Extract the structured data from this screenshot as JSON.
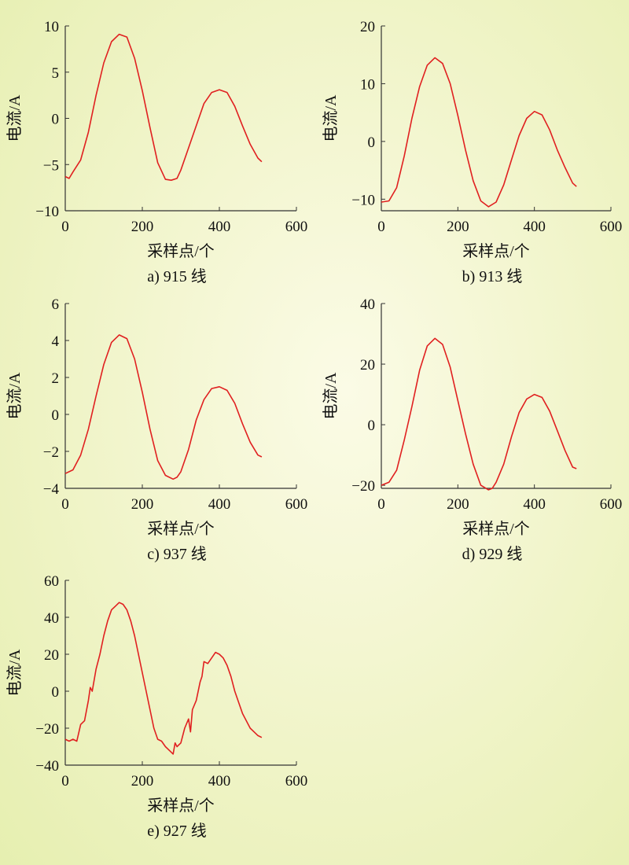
{
  "chart_data": [
    {
      "type": "line",
      "caption": "a) 915 线",
      "xlabel": "采样点/个",
      "ylabel": "电流/A",
      "xlim": [
        0,
        600
      ],
      "ylim": [
        -10,
        10
      ],
      "xticks": [
        0,
        200,
        400,
        600
      ],
      "yticks": [
        -10,
        -5,
        0,
        5,
        10
      ],
      "ytick_labels": [
        "−10",
        "−5",
        "0",
        "5",
        "10"
      ],
      "grid": false,
      "line_color": "#e02020",
      "series": [
        {
          "x": [
            0,
            10,
            20,
            40,
            60,
            80,
            100,
            120,
            140,
            160,
            180,
            200,
            220,
            240,
            260,
            275,
            290,
            300,
            320,
            340,
            360,
            380,
            400,
            420,
            440,
            460,
            480,
            500,
            510
          ],
          "values": [
            -6.3,
            -6.5,
            -5.8,
            -4.5,
            -1.5,
            2.5,
            6.0,
            8.3,
            9.1,
            8.8,
            6.5,
            3.0,
            -1.0,
            -4.8,
            -6.6,
            -6.7,
            -6.5,
            -5.6,
            -3.2,
            -0.8,
            1.6,
            2.8,
            3.1,
            2.8,
            1.3,
            -0.8,
            -2.8,
            -4.3,
            -4.7
          ]
        }
      ]
    },
    {
      "type": "line",
      "caption": "b) 913 线",
      "xlabel": "采样点/个",
      "ylabel": "电流/A",
      "xlim": [
        0,
        600
      ],
      "ylim": [
        -12,
        20
      ],
      "xticks": [
        0,
        200,
        400,
        600
      ],
      "yticks": [
        -10,
        0,
        10,
        20
      ],
      "ytick_labels": [
        "−10",
        "0",
        "10",
        "20"
      ],
      "grid": false,
      "line_color": "#e02020",
      "series": [
        {
          "x": [
            0,
            20,
            40,
            60,
            80,
            100,
            120,
            140,
            160,
            180,
            200,
            220,
            240,
            260,
            280,
            300,
            320,
            340,
            360,
            380,
            400,
            420,
            440,
            460,
            480,
            500,
            510
          ],
          "values": [
            -10.5,
            -10.3,
            -8.0,
            -2.5,
            4.0,
            9.5,
            13.2,
            14.5,
            13.5,
            10.0,
            4.5,
            -1.5,
            -6.8,
            -10.3,
            -11.3,
            -10.5,
            -7.5,
            -3.2,
            1.0,
            4.0,
            5.2,
            4.6,
            2.0,
            -1.5,
            -4.5,
            -7.2,
            -7.8
          ]
        }
      ]
    },
    {
      "type": "line",
      "caption": "c) 937 线",
      "xlabel": "采样点/个",
      "ylabel": "电流/A",
      "xlim": [
        0,
        600
      ],
      "ylim": [
        -4,
        6
      ],
      "xticks": [
        0,
        200,
        400,
        600
      ],
      "yticks": [
        -4,
        -2,
        0,
        2,
        4,
        6
      ],
      "ytick_labels": [
        "−4",
        "−2",
        "0",
        "2",
        "4",
        "6"
      ],
      "grid": false,
      "line_color": "#e02020",
      "series": [
        {
          "x": [
            0,
            20,
            40,
            60,
            80,
            100,
            120,
            140,
            160,
            180,
            200,
            220,
            240,
            260,
            280,
            290,
            300,
            320,
            340,
            360,
            380,
            400,
            420,
            440,
            460,
            480,
            500,
            510
          ],
          "values": [
            -3.2,
            -3.0,
            -2.2,
            -0.8,
            1.0,
            2.7,
            3.9,
            4.3,
            4.1,
            3.0,
            1.2,
            -0.8,
            -2.5,
            -3.3,
            -3.5,
            -3.4,
            -3.1,
            -1.9,
            -0.3,
            0.8,
            1.4,
            1.5,
            1.3,
            0.6,
            -0.5,
            -1.5,
            -2.2,
            -2.3
          ]
        }
      ]
    },
    {
      "type": "line",
      "caption": "d) 929 线",
      "xlabel": "采样点/个",
      "ylabel": "电流/A",
      "xlim": [
        0,
        600
      ],
      "ylim": [
        -21,
        40
      ],
      "xticks": [
        0,
        200,
        400,
        600
      ],
      "yticks": [
        -20,
        0,
        20,
        40
      ],
      "ytick_labels": [
        "−20",
        "0",
        "20",
        "40"
      ],
      "grid": false,
      "line_color": "#e02020",
      "series": [
        {
          "x": [
            0,
            20,
            40,
            60,
            80,
            100,
            120,
            140,
            160,
            180,
            200,
            220,
            240,
            260,
            280,
            290,
            300,
            320,
            340,
            360,
            380,
            400,
            420,
            440,
            460,
            480,
            500,
            510
          ],
          "values": [
            -20.0,
            -19.0,
            -15.0,
            -5.0,
            6.0,
            18.0,
            26.0,
            28.5,
            26.5,
            19.0,
            8.0,
            -3.0,
            -13.0,
            -20.0,
            -21.5,
            -21.0,
            -19.0,
            -13.0,
            -4.0,
            4.0,
            8.5,
            10.0,
            9.0,
            4.5,
            -2.0,
            -8.5,
            -14.0,
            -14.5
          ]
        }
      ]
    },
    {
      "type": "line",
      "caption": "e) 927 线",
      "xlabel": "采样点/个",
      "ylabel": "电流/A",
      "xlim": [
        0,
        600
      ],
      "ylim": [
        -40,
        60
      ],
      "xticks": [
        0,
        200,
        400,
        600
      ],
      "yticks": [
        -40,
        -20,
        0,
        20,
        40,
        60
      ],
      "ytick_labels": [
        "−40",
        "−20",
        "0",
        "20",
        "40",
        "60"
      ],
      "grid": false,
      "line_color": "#e02020",
      "series": [
        {
          "x": [
            0,
            10,
            20,
            30,
            40,
            50,
            60,
            65,
            70,
            80,
            90,
            100,
            110,
            120,
            130,
            140,
            150,
            160,
            170,
            180,
            190,
            200,
            210,
            220,
            230,
            240,
            250,
            260,
            270,
            280,
            285,
            290,
            300,
            310,
            320,
            325,
            330,
            340,
            350,
            355,
            360,
            370,
            380,
            390,
            400,
            410,
            420,
            430,
            440,
            450,
            460,
            470,
            480,
            490,
            500,
            510
          ],
          "values": [
            -26,
            -27,
            -26,
            -27,
            -18,
            -16,
            -5,
            2,
            0,
            12,
            20,
            30,
            38,
            44,
            46,
            48,
            47,
            44,
            38,
            30,
            20,
            10,
            0,
            -10,
            -20,
            -26,
            -27,
            -30,
            -32,
            -34,
            -28,
            -30,
            -28,
            -20,
            -15,
            -22,
            -10,
            -5,
            5,
            8,
            16,
            15,
            18,
            21,
            20,
            18,
            14,
            8,
            0,
            -6,
            -12,
            -16,
            -20,
            -22,
            -24,
            -25
          ]
        }
      ]
    }
  ]
}
